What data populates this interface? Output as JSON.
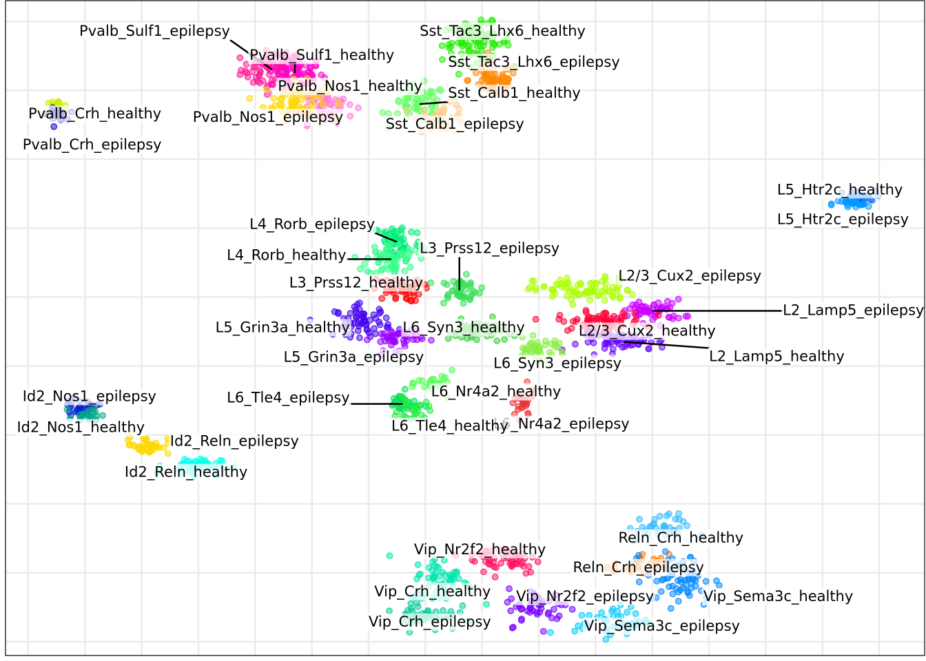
{
  "chart_data": {
    "type": "scatter",
    "title": "",
    "xlabel": "",
    "ylabel": "",
    "xlim": [
      -8.9,
      7.3
    ],
    "ylim": [
      -4.7,
      4.8
    ],
    "grid": true,
    "legend": "none",
    "point_alpha": 0.5,
    "clusters": [
      {
        "name": "Pvalb_Sulf1_epilepsy",
        "color": "#ff1493",
        "center": [
          -4.2,
          3.8
        ],
        "spread": [
          0.5,
          0.25
        ],
        "n": 70,
        "label_pos": [
          -7.6,
          4.35
        ],
        "label_align": "start",
        "leader": true
      },
      {
        "name": "Pvalb_Sulf1_healthy",
        "color": "#ff00cc",
        "center": [
          -3.8,
          3.75
        ],
        "spread": [
          0.45,
          0.22
        ],
        "n": 60,
        "label_pos": [
          -4.6,
          4.0
        ],
        "label_align": "start",
        "leader": true
      },
      {
        "name": "Pvalb_Nos1_healthy",
        "color": "#ff77dd",
        "center": [
          -3.3,
          3.3
        ],
        "spread": [
          0.5,
          0.25
        ],
        "n": 60,
        "label_pos": [
          -4.1,
          3.55
        ],
        "label_align": "start",
        "leader": false
      },
      {
        "name": "Pvalb_Nos1_epilepsy",
        "color": "#ffd700",
        "center": [
          -3.8,
          3.35
        ],
        "spread": [
          0.5,
          0.25
        ],
        "n": 60,
        "label_pos": [
          -5.6,
          3.1
        ],
        "label_align": "start",
        "leader": false
      },
      {
        "name": "Sst_Tac3_Lhx6_healthy",
        "color": "#22ee00",
        "center": [
          -0.6,
          4.2
        ],
        "spread": [
          0.55,
          0.25
        ],
        "n": 90,
        "label_pos": [
          -1.6,
          4.35
        ],
        "label_align": "start",
        "leader": false
      },
      {
        "name": "Sst_Tac3_Lhx6_epilepsy",
        "color": "#ff8800",
        "center": [
          -0.3,
          3.65
        ],
        "spread": [
          0.4,
          0.22
        ],
        "n": 60,
        "label_pos": [
          -1.1,
          3.9
        ],
        "label_align": "start",
        "leader": false
      },
      {
        "name": "Sst_Calb1_healthy",
        "color": "#66ff66",
        "center": [
          -1.6,
          3.3
        ],
        "spread": [
          0.45,
          0.25
        ],
        "n": 60,
        "label_pos": [
          -1.1,
          3.45
        ],
        "label_align": "start",
        "leader": true
      },
      {
        "name": "Sst_Calb1_epilepsy",
        "color": "#ffcc88",
        "center": [
          -1.2,
          3.1
        ],
        "spread": [
          0.4,
          0.18
        ],
        "n": 40,
        "label_pos": [
          -2.2,
          3.0
        ],
        "label_align": "start",
        "leader": false
      },
      {
        "name": "Pvalb_Crh_healthy",
        "color": "#ccee00",
        "center": [
          -8.0,
          3.25
        ],
        "spread": [
          0.2,
          0.1
        ],
        "n": 20,
        "label_pos": [
          -8.5,
          3.15
        ],
        "label_align": "start",
        "leader": false
      },
      {
        "name": "Pvalb_Crh_epilepsy",
        "color": "#0000cc",
        "center": [
          -8.0,
          3.15
        ],
        "spread": [
          0.15,
          0.08
        ],
        "n": 25,
        "label_pos": [
          -8.6,
          2.7
        ],
        "label_align": "start",
        "leader": false
      },
      {
        "name": "L5_Htr2c_healthy",
        "color": "#0066ff",
        "center": [
          6.1,
          1.95
        ],
        "spread": [
          0.3,
          0.08
        ],
        "n": 30,
        "label_pos": [
          4.7,
          2.05
        ],
        "label_align": "start",
        "leader": false
      },
      {
        "name": "L5_Htr2c_epilepsy",
        "color": "#0099ff",
        "center": [
          6.0,
          1.85
        ],
        "spread": [
          0.3,
          0.07
        ],
        "n": 25,
        "label_pos": [
          4.7,
          1.62
        ],
        "label_align": "start",
        "leader": false
      },
      {
        "name": "L4_Rorb_epilepsy",
        "color": "#00ee77",
        "center": [
          -2.0,
          1.3
        ],
        "spread": [
          0.4,
          0.28
        ],
        "n": 60,
        "label_pos": [
          -4.6,
          1.55
        ],
        "label_align": "start",
        "leader": true
      },
      {
        "name": "L4_Rorb_healthy",
        "color": "#33ff88",
        "center": [
          -2.1,
          1.05
        ],
        "spread": [
          0.4,
          0.22
        ],
        "n": 55,
        "label_pos": [
          -5.0,
          1.1
        ],
        "label_align": "start",
        "leader": true
      },
      {
        "name": "L3_Prss12_epilepsy",
        "color": "#33dd55",
        "center": [
          -0.9,
          0.6
        ],
        "spread": [
          0.35,
          0.18
        ],
        "n": 45,
        "label_pos": [
          -1.6,
          1.2
        ],
        "label_align": "start",
        "leader": true
      },
      {
        "name": "L3_Prss12_healthy",
        "color": "#ff0000",
        "center": [
          -2.0,
          0.6
        ],
        "spread": [
          0.4,
          0.15
        ],
        "n": 45,
        "label_pos": [
          -3.9,
          0.7
        ],
        "label_align": "start",
        "leader": false
      },
      {
        "name": "L2/3_Cux2_epilepsy",
        "color": "#aaff00",
        "center": [
          1.3,
          0.6
        ],
        "spread": [
          0.8,
          0.17
        ],
        "n": 80,
        "label_pos": [
          1.9,
          0.8
        ],
        "label_align": "start",
        "leader": false
      },
      {
        "name": "L2_Lamp5_epilepsy",
        "color": "#cc00ff",
        "center": [
          2.5,
          0.3
        ],
        "spread": [
          0.5,
          0.15
        ],
        "n": 55,
        "label_pos": [
          4.8,
          0.3
        ],
        "label_align": "start",
        "leader": true
      },
      {
        "name": "L2/3_Cux2_healthy",
        "color": "#ff0033",
        "center": [
          1.6,
          0.15
        ],
        "spread": [
          0.7,
          0.13
        ],
        "n": 70,
        "label_pos": [
          1.2,
          0.0
        ],
        "label_align": "start",
        "leader": false
      },
      {
        "name": "L2_Lamp5_healthy",
        "color": "#6600ff",
        "center": [
          2.0,
          -0.15
        ],
        "spread": [
          0.7,
          0.12
        ],
        "n": 60,
        "label_pos": [
          3.5,
          -0.37
        ],
        "label_align": "start",
        "leader": true
      },
      {
        "name": "L5_Grin3a_healthy",
        "color": "#4400ee",
        "center": [
          -2.6,
          0.15
        ],
        "spread": [
          0.45,
          0.2
        ],
        "n": 60,
        "label_pos": [
          -5.2,
          0.05
        ],
        "label_align": "start",
        "leader": false
      },
      {
        "name": "L5_Grin3a_epilepsy",
        "color": "#9900ff",
        "center": [
          -2.0,
          -0.1
        ],
        "spread": [
          0.4,
          0.15
        ],
        "n": 45,
        "label_pos": [
          -4.0,
          -0.38
        ],
        "label_align": "start",
        "leader": false
      },
      {
        "name": "L6_Syn3_healthy",
        "color": "#33cc33",
        "center": [
          -0.6,
          0.0
        ],
        "spread": [
          0.45,
          0.15
        ],
        "n": 50,
        "label_pos": [
          -1.9,
          0.05
        ],
        "label_align": "start",
        "leader": true
      },
      {
        "name": "L6_Syn3_epilepsy",
        "color": "#88ee44",
        "center": [
          0.5,
          -0.25
        ],
        "spread": [
          0.45,
          0.13
        ],
        "n": 40,
        "label_pos": [
          -0.3,
          -0.47
        ],
        "label_align": "start",
        "leader": false
      },
      {
        "name": "L6_Nr4a2_healthy",
        "color": "#55ff55",
        "center": [
          -1.3,
          -0.75
        ],
        "spread": [
          0.3,
          0.15
        ],
        "n": 25,
        "label_pos": [
          -1.4,
          -0.88
        ],
        "label_align": "start",
        "leader": false
      },
      {
        "name": "L6_Nr4a2_epilepsy",
        "color": "#ee3333",
        "center": [
          0.2,
          -1.05
        ],
        "spread": [
          0.2,
          0.2
        ],
        "n": 30,
        "label_pos": [
          -0.3,
          -1.35
        ],
        "label_align": "start",
        "leader": false
      },
      {
        "name": "L6_Tle4_epilepsy",
        "color": "#00dd55",
        "center": [
          -1.9,
          -1.05
        ],
        "spread": [
          0.25,
          0.15
        ],
        "n": 30,
        "label_pos": [
          -5.0,
          -0.97
        ],
        "label_align": "start",
        "leader": true
      },
      {
        "name": "L6_Tle4_healthy",
        "color": "#22ee44",
        "center": [
          -1.7,
          -1.15
        ],
        "spread": [
          0.25,
          0.15
        ],
        "n": 25,
        "label_pos": [
          -2.1,
          -1.38
        ],
        "label_align": "start",
        "leader": false
      },
      {
        "name": "Id2_Nos1_epilepsy",
        "color": "#0022cc",
        "center": [
          -7.6,
          -1.1
        ],
        "spread": [
          0.3,
          0.1
        ],
        "n": 30,
        "label_pos": [
          -8.6,
          -0.95
        ],
        "label_align": "start",
        "leader": false
      },
      {
        "name": "Id2_Nos1_healthy",
        "color": "#00aa88",
        "center": [
          -7.4,
          -1.2
        ],
        "spread": [
          0.25,
          0.1
        ],
        "n": 20,
        "label_pos": [
          -8.7,
          -1.4
        ],
        "label_align": "start",
        "leader": false
      },
      {
        "name": "Id2_Reln_epilepsy",
        "color": "#ffd700",
        "center": [
          -6.4,
          -1.65
        ],
        "spread": [
          0.35,
          0.12
        ],
        "n": 40,
        "label_pos": [
          -6.0,
          -1.6
        ],
        "label_align": "start",
        "leader": false
      },
      {
        "name": "Id2_Reln_healthy",
        "color": "#00ffee",
        "center": [
          -5.6,
          -1.95
        ],
        "spread": [
          0.45,
          0.12
        ],
        "n": 40,
        "label_pos": [
          -6.8,
          -2.05
        ],
        "label_align": "start",
        "leader": false
      },
      {
        "name": "Reln_Crh_healthy",
        "color": "#33bbff",
        "center": [
          2.6,
          -2.85
        ],
        "spread": [
          0.5,
          0.18
        ],
        "n": 35,
        "label_pos": [
          1.9,
          -3.0
        ],
        "label_align": "start",
        "leader": false
      },
      {
        "name": "Reln_Crh_epilepsy",
        "color": "#ff7700",
        "center": [
          2.3,
          -3.4
        ],
        "spread": [
          0.45,
          0.15
        ],
        "n": 30,
        "label_pos": [
          1.1,
          -3.43
        ],
        "label_align": "start",
        "leader": false
      },
      {
        "name": "Vip_Sema3c_healthy",
        "color": "#0088ff",
        "center": [
          3.0,
          -3.6
        ],
        "spread": [
          0.55,
          0.35
        ],
        "n": 60,
        "label_pos": [
          3.4,
          -3.85
        ],
        "label_align": "start",
        "leader": false
      },
      {
        "name": "Vip_Sema3c_epilepsy",
        "color": "#00ccff",
        "center": [
          1.8,
          -4.2
        ],
        "spread": [
          0.6,
          0.2
        ],
        "n": 45,
        "label_pos": [
          1.3,
          -4.28
        ],
        "label_align": "start",
        "leader": false
      },
      {
        "name": "Vip_Nr2f2_healthy",
        "color": "#ff1166",
        "center": [
          -0.1,
          -3.3
        ],
        "spread": [
          0.6,
          0.2
        ],
        "n": 55,
        "label_pos": [
          -1.7,
          -3.17
        ],
        "label_align": "start",
        "leader": true
      },
      {
        "name": "Vip_Nr2f2_epilepsy",
        "color": "#7700ff",
        "center": [
          0.5,
          -4.0
        ],
        "spread": [
          0.5,
          0.25
        ],
        "n": 50,
        "label_pos": [
          0.1,
          -3.85
        ],
        "label_align": "start",
        "leader": false
      },
      {
        "name": "Vip_Crh_healthy",
        "color": "#00e6b0",
        "center": [
          -1.2,
          -3.6
        ],
        "spread": [
          0.5,
          0.3
        ],
        "n": 55,
        "label_pos": [
          -2.4,
          -3.78
        ],
        "label_align": "start",
        "leader": false
      },
      {
        "name": "Vip_Crh_epilepsy",
        "color": "#00cc99",
        "center": [
          -1.5,
          -4.1
        ],
        "spread": [
          0.5,
          0.22
        ],
        "n": 45,
        "label_pos": [
          -2.5,
          -4.22
        ],
        "label_align": "start",
        "leader": false
      }
    ]
  }
}
